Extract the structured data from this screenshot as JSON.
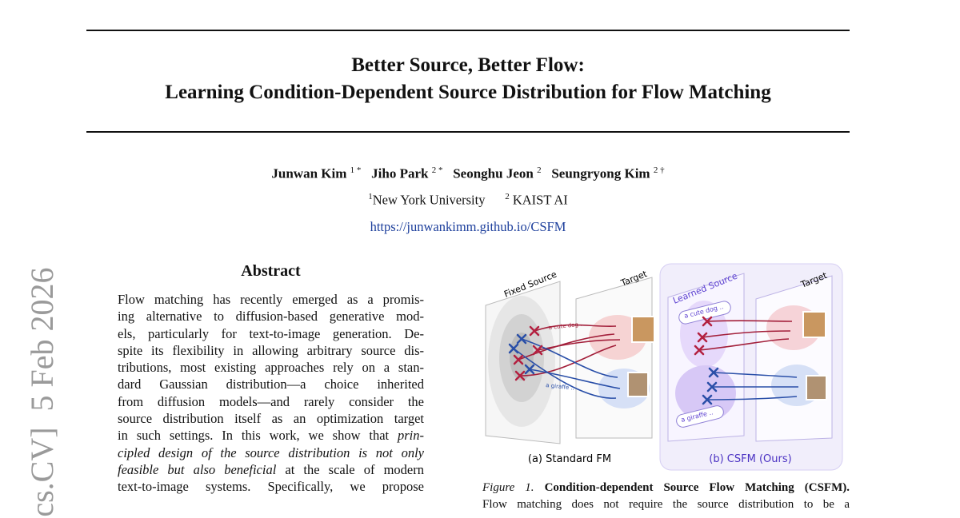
{
  "sidebar": {
    "arxiv_fragment": "[cs.CV]  5 Feb 2026"
  },
  "header": {
    "title_lines": [
      "Better Source, Better Flow:",
      "Learning Condition-Dependent Source Distribution for Flow Matching"
    ],
    "authors": [
      {
        "name": "Junwan Kim",
        "sup": "1 *"
      },
      {
        "name": "Jiho Park",
        "sup": "2 *"
      },
      {
        "name": "Seonghu Jeon",
        "sup": "2"
      },
      {
        "name": "Seungryong Kim",
        "sup": "2 †"
      }
    ],
    "affiliations": [
      {
        "sup": "1",
        "name": "New York University"
      },
      {
        "sup": "2",
        "name": "KAIST AI"
      }
    ],
    "url": "https://junwankimm.github.io/CSFM"
  },
  "abstract": {
    "heading": "Abstract",
    "lines": [
      [
        "Flow matching has recently emerged as a promis-"
      ],
      [
        "ing alternative to diffusion-based generative mod-"
      ],
      [
        "els, particularly for text-to-image generation. De-"
      ],
      [
        "spite its flexibility in allowing arbitrary source dis-"
      ],
      [
        "tributions, most existing approaches rely on a stan-"
      ],
      [
        "dard Gaussian distribution—a choice inherited"
      ],
      [
        "from diffusion models—and rarely consider the"
      ],
      [
        "source distribution itself as an optimization target"
      ],
      [
        "in such settings. In this work, we show that ",
        {
          "text": "prin-",
          "italic": true
        }
      ],
      [
        {
          "text": "cipled design of the source distribution is not only",
          "italic": true
        }
      ],
      [
        {
          "text": "feasible but also beneficial",
          "italic": true
        },
        " at the scale of modern"
      ],
      [
        "text-to-image systems. Specifically, we propose"
      ]
    ]
  },
  "figure": {
    "panels": [
      {
        "source_label": "Fixed Source",
        "target_label": "Target",
        "prompts": [
          "a cute dog ..",
          "a giraffe .."
        ],
        "caption": "(a) Standard FM"
      },
      {
        "source_label": "Learned Source",
        "target_label": "Target",
        "prompts": [
          "a cute dog ..",
          "a giraffe .."
        ],
        "caption": "(b) CSFM (Ours)"
      }
    ],
    "caption": {
      "label": "Figure 1.",
      "title": "Condition-dependent Source Flow Matching (CSFM).",
      "lines": [
        "Flow matching does not require the source distribution to be a"
      ]
    }
  }
}
